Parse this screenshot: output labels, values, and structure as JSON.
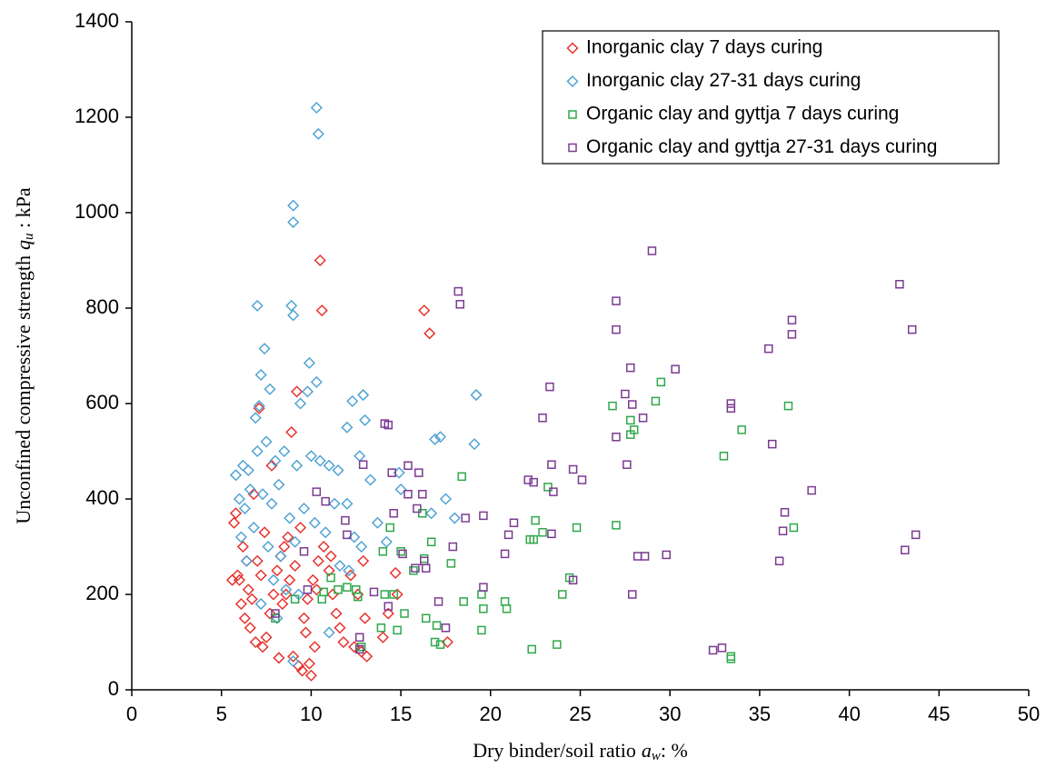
{
  "chart_data": {
    "type": "scatter",
    "x_label": {
      "text": "Dry binder/soil ratio",
      "symbol": "a",
      "subscript": "w",
      "unit": ": %"
    },
    "y_label": {
      "text": "Unconfined compressive strength",
      "symbol": "q",
      "subscript": "u",
      "unit": " : kPa"
    },
    "xlim": [
      0,
      50
    ],
    "xticks": [
      0,
      5,
      10,
      15,
      20,
      25,
      30,
      35,
      40,
      45,
      50
    ],
    "ylim": [
      0,
      1400
    ],
    "yticks": [
      0,
      200,
      400,
      600,
      800,
      1000,
      1200,
      1400
    ],
    "legend": "top-right",
    "series": [
      {
        "name": "Inorganic clay 7 days curing",
        "color": "#e8302a",
        "marker": "diamond",
        "x": [
          10.5,
          10.6,
          16.3,
          16.6,
          9.2,
          7.1,
          8.9,
          7.8,
          6.8,
          5.8,
          5.7,
          6.2,
          5.9,
          6.0,
          6.5,
          6.1,
          6.3,
          6.6,
          6.9,
          7.3,
          7.5,
          7.7,
          7.9,
          8.1,
          8.3,
          8.5,
          8.7,
          8.6,
          8.4,
          8.2,
          9.0,
          9.3,
          9.5,
          10.0,
          9.9,
          10.2,
          9.7,
          9.6,
          9.8,
          10.1,
          10.4,
          10.7,
          11.0,
          11.2,
          11.4,
          11.6,
          11.8,
          12.4,
          12.8,
          13.1,
          13.0,
          12.6,
          12.2,
          12.9,
          14.0,
          14.3,
          14.8,
          14.7,
          17.6,
          7.0,
          7.4,
          7.2,
          6.7,
          9.4,
          10.3,
          11.1,
          8.8,
          9.1,
          6.4,
          5.6
        ],
        "values": [
          900,
          795,
          795,
          747,
          625,
          590,
          540,
          470,
          410,
          370,
          350,
          300,
          240,
          230,
          210,
          180,
          150,
          130,
          100,
          90,
          110,
          160,
          200,
          250,
          280,
          300,
          320,
          200,
          180,
          67,
          70,
          50,
          40,
          30,
          55,
          90,
          120,
          150,
          190,
          230,
          270,
          300,
          250,
          200,
          160,
          130,
          100,
          90,
          80,
          70,
          150,
          200,
          240,
          270,
          110,
          160,
          200,
          245,
          100,
          270,
          330,
          240,
          190,
          340,
          210,
          280,
          230,
          260,
          270,
          230
        ]
      },
      {
        "name": "Inorganic clay 27-31 days curing",
        "color": "#4ea2d4",
        "marker": "diamond",
        "x": [
          10.3,
          10.4,
          9.0,
          9.0,
          7.0,
          8.9,
          9.0,
          7.4,
          9.9,
          7.2,
          7.7,
          10.3,
          9.8,
          7.1,
          6.9,
          9.4,
          12.3,
          12.9,
          19.2,
          12.0,
          13.0,
          16.9,
          17.2,
          19.1,
          6.2,
          6.5,
          5.8,
          7.0,
          7.5,
          8.0,
          8.5,
          9.2,
          10.0,
          10.5,
          11.0,
          11.5,
          12.7,
          13.3,
          14.9,
          15.0,
          16.7,
          17.5,
          18.0,
          6.0,
          6.3,
          6.6,
          7.3,
          7.8,
          8.2,
          8.8,
          9.6,
          10.2,
          11.3,
          12.0,
          12.4,
          12.8,
          13.7,
          14.2,
          6.1,
          6.8,
          7.6,
          8.3,
          9.1,
          10.8,
          11.6,
          6.4,
          7.9,
          8.6,
          9.3,
          7.2,
          8.1,
          9.0,
          11.0,
          12.1
        ],
        "values": [
          1220,
          1165,
          1015,
          980,
          805,
          805,
          785,
          715,
          685,
          660,
          630,
          645,
          625,
          595,
          570,
          600,
          605,
          618,
          618,
          550,
          565,
          525,
          530,
          515,
          470,
          460,
          450,
          500,
          520,
          480,
          500,
          470,
          490,
          480,
          470,
          460,
          490,
          440,
          455,
          420,
          370,
          400,
          360,
          400,
          380,
          420,
          410,
          390,
          430,
          360,
          380,
          350,
          390,
          390,
          320,
          300,
          350,
          310,
          320,
          340,
          300,
          280,
          310,
          330,
          260,
          270,
          230,
          210,
          200,
          180,
          150,
          60,
          120,
          250
        ]
      },
      {
        "name": "Organic clay and gyttja 7 days curing",
        "color": "#2ea84a",
        "marker": "square",
        "x": [
          18.4,
          18.5,
          16.2,
          16.3,
          15.0,
          14.4,
          14.6,
          15.7,
          16.4,
          16.7,
          17.0,
          17.2,
          16.9,
          15.2,
          14.8,
          14.0,
          14.1,
          13.9,
          12.5,
          12.0,
          11.5,
          10.7,
          10.6,
          11.1,
          12.8,
          12.6,
          17.8,
          19.5,
          19.5,
          19.6,
          20.8,
          20.9,
          22.2,
          22.4,
          22.5,
          22.9,
          23.2,
          23.7,
          22.3,
          24.0,
          24.4,
          24.8,
          26.8,
          27.0,
          27.8,
          28.0,
          27.8,
          29.2,
          29.5,
          33.0,
          34.0,
          36.6,
          36.9,
          33.4,
          33.4,
          8.0,
          9.1
        ],
        "values": [
          447,
          185,
          370,
          275,
          290,
          340,
          200,
          250,
          150,
          310,
          135,
          95,
          100,
          160,
          125,
          290,
          200,
          130,
          210,
          215,
          210,
          205,
          190,
          235,
          90,
          195,
          265,
          200,
          125,
          170,
          185,
          170,
          315,
          315,
          355,
          330,
          425,
          95,
          85,
          200,
          235,
          340,
          595,
          345,
          565,
          545,
          535,
          605,
          645,
          490,
          545,
          595,
          340,
          65,
          70,
          150,
          190
        ]
      },
      {
        "name": "Organic clay and gyttja 27-31 days curing",
        "color": "#7b3a92",
        "marker": "square",
        "x": [
          29.0,
          18.2,
          18.3,
          27.0,
          27.0,
          42.8,
          43.5,
          36.8,
          36.8,
          35.5,
          27.8,
          30.3,
          27.5,
          27.9,
          28.5,
          23.3,
          22.9,
          33.4,
          33.4,
          35.7,
          27.0,
          27.6,
          23.4,
          24.6,
          25.1,
          22.1,
          22.4,
          23.5,
          14.1,
          14.3,
          12.9,
          14.5,
          15.4,
          16.0,
          15.4,
          16.2,
          14.6,
          15.9,
          16.4,
          15.8,
          15.1,
          16.3,
          17.9,
          18.6,
          19.6,
          21.3,
          21.0,
          20.8,
          23.4,
          24.6,
          19.6,
          17.1,
          17.5,
          14.3,
          13.5,
          12.7,
          12.7,
          28.2,
          28.6,
          29.8,
          27.9,
          36.4,
          36.3,
          37.9,
          36.1,
          43.1,
          43.7,
          32.4,
          32.9,
          11.9,
          12.0,
          10.8,
          10.3,
          9.6,
          8.0,
          9.8
        ],
        "values": [
          920,
          835,
          808,
          815,
          755,
          850,
          755,
          775,
          745,
          715,
          675,
          672,
          620,
          598,
          570,
          635,
          570,
          600,
          590,
          515,
          530,
          472,
          472,
          462,
          440,
          440,
          435,
          415,
          558,
          555,
          472,
          455,
          470,
          455,
          410,
          410,
          370,
          380,
          255,
          255,
          285,
          270,
          300,
          360,
          365,
          350,
          325,
          285,
          327,
          230,
          215,
          185,
          130,
          175,
          205,
          110,
          85,
          280,
          280,
          283,
          200,
          372,
          333,
          418,
          270,
          293,
          325,
          83,
          88,
          355,
          325,
          395,
          415,
          290,
          160,
          210
        ]
      }
    ]
  }
}
